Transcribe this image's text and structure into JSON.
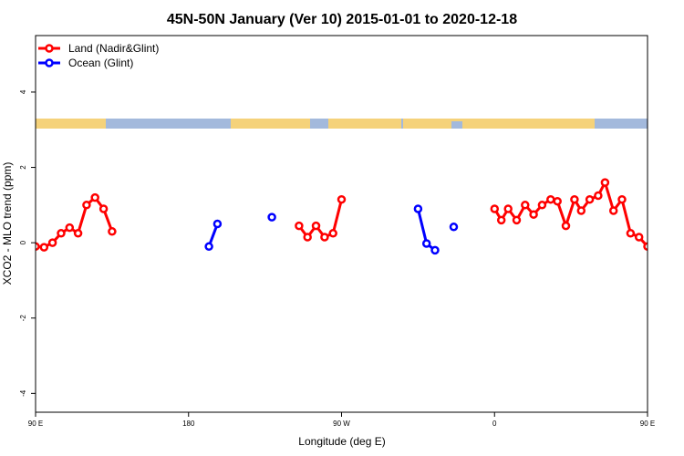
{
  "chart_data": {
    "type": "line",
    "title": "45N-50N January (Ver 10)   2015-01-01 to 2020-12-18",
    "xlabel": "Longitude (deg E)",
    "ylabel": "XCO2 - MLO trend (ppm)",
    "xlim": [
      90,
      450
    ],
    "ylim": [
      -4.5,
      5.5
    ],
    "x_ticks": [
      {
        "value": 90,
        "label": "90 E"
      },
      {
        "value": 180,
        "label": "180"
      },
      {
        "value": 270,
        "label": "90 W"
      },
      {
        "value": 360,
        "label": "0"
      },
      {
        "value": 450,
        "label": "90 E"
      },
      {
        "value": 540,
        "label": "180"
      }
    ],
    "y_ticks": [
      {
        "value": 4,
        "label": "4"
      },
      {
        "value": 2,
        "label": "2"
      },
      {
        "value": 0,
        "label": "0"
      },
      {
        "value": -2,
        "label": "-2"
      },
      {
        "value": -4,
        "label": "-4"
      }
    ],
    "legend_position": "top-left",
    "grid": false,
    "colors": {
      "land": "#ff0000",
      "ocean": "#0000ff",
      "map_land": "#f5d27a",
      "map_ocean": "#a3b9dc"
    },
    "series": [
      {
        "name": "Land (Nadir&Glint)",
        "color": "#ff0000",
        "segments": [
          [
            [
              90,
              -0.1
            ],
            [
              95,
              -0.12
            ],
            [
              100,
              0.0
            ],
            [
              105,
              0.25
            ],
            [
              110,
              0.4
            ],
            [
              115,
              0.25
            ],
            [
              120,
              1.0
            ],
            [
              125,
              1.2
            ],
            [
              130,
              0.9
            ],
            [
              135,
              0.3
            ]
          ],
          [
            [
              245,
              0.45
            ],
            [
              250,
              0.15
            ],
            [
              255,
              0.45
            ],
            [
              260,
              0.15
            ],
            [
              265,
              0.25
            ],
            [
              270,
              1.15
            ]
          ],
          [
            [
              360,
              0.9
            ],
            [
              364,
              0.6
            ],
            [
              368,
              0.9
            ],
            [
              373,
              0.6
            ],
            [
              378,
              1.0
            ],
            [
              383,
              0.75
            ],
            [
              388,
              1.0
            ],
            [
              393,
              1.15
            ],
            [
              397,
              1.1
            ],
            [
              402,
              0.45
            ],
            [
              407,
              1.15
            ],
            [
              411,
              0.85
            ],
            [
              416,
              1.15
            ],
            [
              421,
              1.25
            ],
            [
              425,
              1.6
            ],
            [
              430,
              0.85
            ],
            [
              435,
              1.15
            ],
            [
              440,
              0.25
            ],
            [
              445,
              0.15
            ],
            [
              450,
              -0.1
            ],
            [
              455,
              -0.1
            ],
            [
              460,
              0.0
            ],
            [
              465,
              0.25
            ],
            [
              470,
              0.4
            ],
            [
              475,
              0.25
            ],
            [
              480,
              1.0
            ],
            [
              485,
              1.2
            ],
            [
              490,
              0.9
            ],
            [
              495,
              0.3
            ]
          ]
        ]
      },
      {
        "name": "Ocean (Glint)",
        "color": "#0000ff",
        "segments": [
          [
            [
              192,
              -0.1
            ],
            [
              197,
              0.5
            ]
          ],
          [
            [
              229,
              0.68
            ]
          ],
          [
            [
              315,
              0.9
            ],
            [
              320,
              -0.02
            ],
            [
              325,
              -0.2
            ]
          ],
          [
            [
              336,
              0.42
            ]
          ]
        ]
      }
    ]
  }
}
